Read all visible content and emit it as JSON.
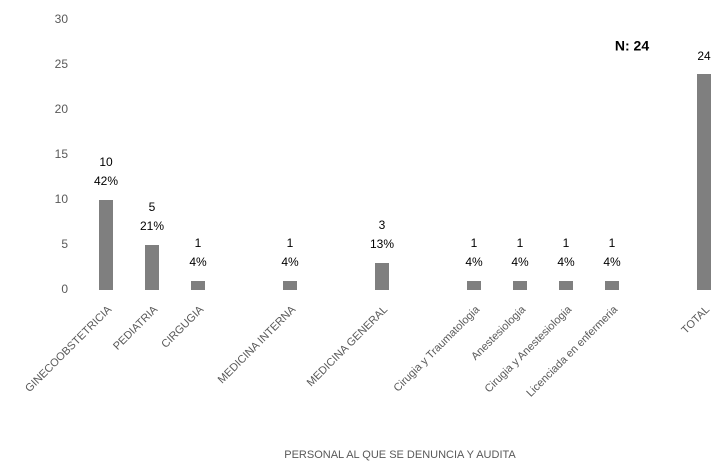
{
  "chart_data": {
    "type": "bar",
    "title": "N: 24",
    "x_label": "PERSONAL AL QUE SE DENUNCIA Y  AUDITA",
    "categories": [
      "GINECOOBSTETRICIA",
      "PEDIATRIA",
      "CIRGUGIA",
      null,
      "MEDICINA INTERNA",
      null,
      "MEDICINA GENERAL",
      null,
      "Cirugia y Traumatologia",
      "Anestesiologia",
      "Cirugia  y Anestesiologia",
      "Licenciada en enfermeria",
      null,
      "TOTAL"
    ],
    "values": [
      10,
      5,
      1,
      null,
      1,
      null,
      3,
      null,
      1,
      1,
      1,
      1,
      null,
      24
    ],
    "percent_labels": [
      "42%",
      "21%",
      "4%",
      null,
      "4%",
      null,
      "13%",
      null,
      "4%",
      "4%",
      "4%",
      "4%",
      null,
      null
    ],
    "color": "#7f7f7f",
    "ylim": [
      0,
      30
    ],
    "yticks": [
      0,
      5,
      10,
      15,
      20,
      25,
      30
    ],
    "grid": false
  }
}
